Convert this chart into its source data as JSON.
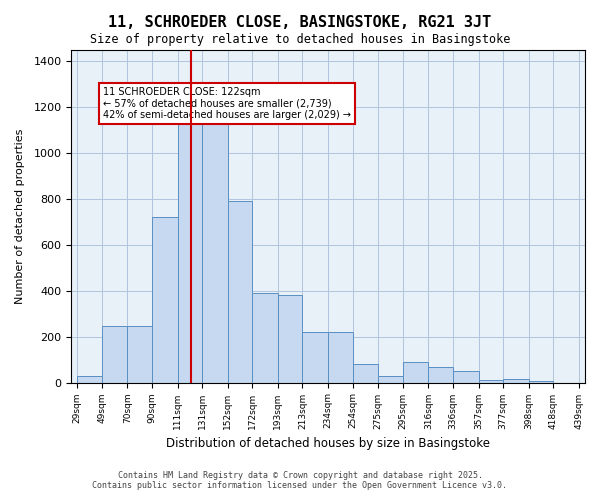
{
  "title": "11, SCHROEDER CLOSE, BASINGSTOKE, RG21 3JT",
  "subtitle": "Size of property relative to detached houses in Basingstoke",
  "xlabel": "Distribution of detached houses by size in Basingstoke",
  "ylabel": "Number of detached properties",
  "bar_color": "#c6d9f0",
  "bar_edge_color": "#5a8fc2",
  "background_color": "#ffffff",
  "grid_color": "#b0c4de",
  "vline_x": 122,
  "vline_color": "#cc0000",
  "annotation_title": "11 SCHROEDER CLOSE: 122sqm",
  "annotation_line1": "← 57% of detached houses are smaller (2,739)",
  "annotation_line2": "42% of semi-detached houses are larger (2,029) →",
  "annotation_box_color": "#cc0000",
  "bins": [
    29,
    49,
    70,
    90,
    111,
    131,
    152,
    172,
    193,
    213,
    234,
    254,
    275,
    295,
    316,
    336,
    357,
    377,
    398,
    418,
    439
  ],
  "values": [
    30,
    245,
    245,
    720,
    1130,
    1150,
    790,
    390,
    380,
    220,
    220,
    80,
    30,
    90,
    70,
    50,
    10,
    15,
    5,
    0
  ],
  "ylim": [
    0,
    1450
  ],
  "yticks": [
    0,
    200,
    400,
    600,
    800,
    1000,
    1200,
    1400
  ],
  "footer_line1": "Contains HM Land Registry data © Crown copyright and database right 2025.",
  "footer_line2": "Contains public sector information licensed under the Open Government Licence v3.0."
}
